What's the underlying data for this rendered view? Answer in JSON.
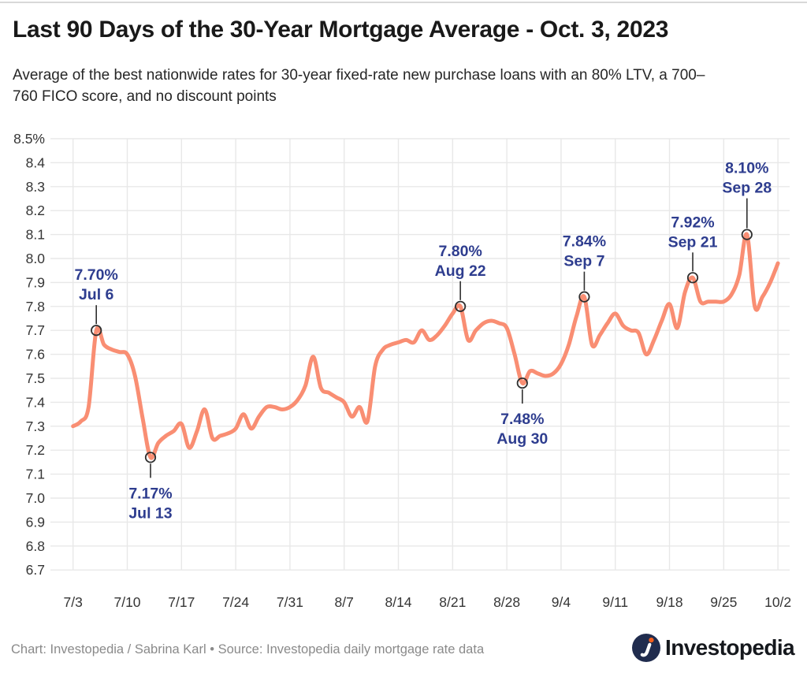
{
  "page": {
    "title": "Last 90 Days of the 30-Year Mortgage Average - Oct. 3, 2023",
    "subtitle_line1": "Average of the best nationwide rates for 30-year fixed-rate new purchase loans with an 80% LTV, a 700–",
    "subtitle_line2": "760 FICO score, and no discount points",
    "footer_credit": "Chart: Investopedia / Sabrina Karl • Source: Investopedia daily mortgage rate data",
    "logo_text": "Investopedia"
  },
  "chart_data": {
    "type": "line",
    "title": "Last 90 Days of the 30-Year Mortgage Average - Oct. 3, 2023",
    "subtitle": "Average of the best nationwide rates for 30-year fixed-rate new purchase loans with an 80% LTV, a 700–760 FICO score, and no discount points",
    "unit": "%",
    "grid": true,
    "legend": "none",
    "ylim": [
      6.7,
      8.5
    ],
    "y_tick_step": 0.1,
    "y_tick_labels": [
      "8.5%",
      "8.4",
      "8.3",
      "8.2",
      "8.1",
      "8.0",
      "7.9",
      "7.8",
      "7.7",
      "7.6",
      "7.5",
      "7.4",
      "7.3",
      "7.2",
      "7.1",
      "7.0",
      "6.9",
      "6.8",
      "6.7"
    ],
    "x_tick_labels": [
      "7/3",
      "7/10",
      "7/17",
      "7/24",
      "7/31",
      "8/7",
      "8/14",
      "8/21",
      "8/28",
      "9/4",
      "9/11",
      "9/18",
      "9/25",
      "10/2"
    ],
    "x": [
      "7/3",
      "7/4",
      "7/5",
      "7/6",
      "7/7",
      "7/8",
      "7/9",
      "7/10",
      "7/11",
      "7/12",
      "7/13",
      "7/14",
      "7/15",
      "7/16",
      "7/17",
      "7/18",
      "7/19",
      "7/20",
      "7/21",
      "7/22",
      "7/23",
      "7/24",
      "7/25",
      "7/26",
      "7/27",
      "7/28",
      "7/29",
      "7/30",
      "7/31",
      "8/1",
      "8/2",
      "8/3",
      "8/4",
      "8/5",
      "8/6",
      "8/7",
      "8/8",
      "8/9",
      "8/10",
      "8/11",
      "8/12",
      "8/13",
      "8/14",
      "8/15",
      "8/16",
      "8/17",
      "8/18",
      "8/19",
      "8/20",
      "8/21",
      "8/22",
      "8/23",
      "8/24",
      "8/25",
      "8/26",
      "8/27",
      "8/28",
      "8/29",
      "8/30",
      "8/31",
      "9/1",
      "9/2",
      "9/3",
      "9/4",
      "9/5",
      "9/6",
      "9/7",
      "9/8",
      "9/9",
      "9/10",
      "9/11",
      "9/12",
      "9/13",
      "9/14",
      "9/15",
      "9/16",
      "9/17",
      "9/18",
      "9/19",
      "9/20",
      "9/21",
      "9/22",
      "9/23",
      "9/24",
      "9/25",
      "9/26",
      "9/27",
      "9/28",
      "9/29",
      "9/30",
      "10/1",
      "10/2"
    ],
    "values": [
      7.3,
      7.32,
      7.38,
      7.7,
      7.64,
      7.62,
      7.61,
      7.6,
      7.51,
      7.33,
      7.17,
      7.23,
      7.26,
      7.28,
      7.31,
      7.21,
      7.28,
      7.37,
      7.25,
      7.26,
      7.27,
      7.29,
      7.35,
      7.29,
      7.34,
      7.38,
      7.38,
      7.37,
      7.38,
      7.41,
      7.47,
      7.59,
      7.46,
      7.44,
      7.42,
      7.4,
      7.34,
      7.38,
      7.32,
      7.55,
      7.62,
      7.64,
      7.65,
      7.66,
      7.65,
      7.7,
      7.66,
      7.68,
      7.72,
      7.77,
      7.8,
      7.66,
      7.7,
      7.73,
      7.74,
      7.73,
      7.71,
      7.6,
      7.48,
      7.53,
      7.52,
      7.51,
      7.52,
      7.56,
      7.64,
      7.76,
      7.84,
      7.64,
      7.68,
      7.73,
      7.77,
      7.72,
      7.7,
      7.69,
      7.6,
      7.66,
      7.74,
      7.81,
      7.71,
      7.86,
      7.92,
      7.82,
      7.82,
      7.82,
      7.82,
      7.85,
      7.93,
      8.1,
      7.8,
      7.84,
      7.9,
      7.98
    ],
    "annotations": [
      {
        "label_value": "7.70%",
        "label_date": "Jul 6",
        "day_index": 3,
        "value": 7.7,
        "position": "above",
        "gap": 0
      },
      {
        "label_value": "7.17%",
        "label_date": "Jul 13",
        "day_index": 10,
        "value": 7.17,
        "position": "below",
        "gap": 0
      },
      {
        "label_value": "7.80%",
        "label_date": "Aug 22",
        "day_index": 50,
        "value": 7.8,
        "position": "above",
        "gap": 0
      },
      {
        "label_value": "7.48%",
        "label_date": "Aug 30",
        "day_index": 58,
        "value": 7.48,
        "position": "below",
        "gap": 0
      },
      {
        "label_value": "7.84%",
        "label_date": "Sep 7",
        "day_index": 66,
        "value": 7.84,
        "position": "above",
        "gap": 0
      },
      {
        "label_value": "7.92%",
        "label_date": "Sep 21",
        "day_index": 80,
        "value": 7.92,
        "position": "above",
        "gap": 0
      },
      {
        "label_value": "8.10%",
        "label_date": "Sep 28",
        "day_index": 87,
        "value": 8.1,
        "position": "above",
        "gap": 14
      }
    ],
    "colors": {
      "line": "#F98E73",
      "grid": "#E8E8E8",
      "annotation": "#2E3D8F",
      "marker_stroke": "#2F2F2F",
      "axis_label": "#353535",
      "logo_circle": "#202C4E",
      "logo_dot": "#F4601D"
    }
  }
}
